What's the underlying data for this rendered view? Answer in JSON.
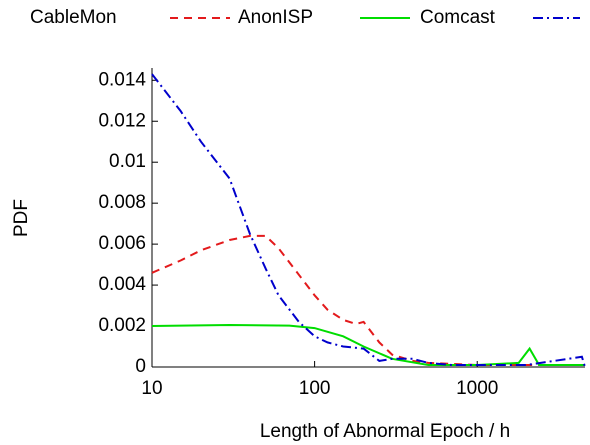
{
  "chart_data": {
    "type": "line",
    "xlabel": "Length of Abnormal Epoch / h",
    "ylabel": "PDF",
    "xscale": "log",
    "xlim": [
      10,
      4600
    ],
    "ylim": [
      0,
      0.0146
    ],
    "xticks": [
      10,
      100,
      1000
    ],
    "yticks": [
      0,
      0.002,
      0.004,
      0.006,
      0.008,
      0.01,
      0.012,
      0.014
    ],
    "legend": "top",
    "series": [
      {
        "name": "CableMon",
        "color": "#e31a1c",
        "style": "dashed",
        "x": [
          10,
          15,
          20,
          30,
          40,
          50,
          60,
          80,
          100,
          120,
          150,
          180,
          200,
          250,
          300,
          400,
          500,
          1000,
          2000,
          4600
        ],
        "values": [
          0.0046,
          0.0052,
          0.0057,
          0.0062,
          0.0064,
          0.0064,
          0.0058,
          0.0045,
          0.0035,
          0.0028,
          0.0023,
          0.0021,
          0.0022,
          0.0012,
          0.0006,
          0.0003,
          0.0002,
          0.0001,
          0.0001,
          0.0001
        ]
      },
      {
        "name": "AnonISP",
        "color": "#00dd00",
        "style": "solid",
        "x": [
          10,
          30,
          70,
          100,
          150,
          200,
          300,
          500,
          1000,
          1800,
          2100,
          2400,
          4600
        ],
        "values": [
          0.002,
          0.00205,
          0.00202,
          0.0019,
          0.0015,
          0.001,
          0.0004,
          0.0001,
          0.0001,
          0.0002,
          0.0009,
          0.0001,
          0.0001
        ]
      },
      {
        "name": "Comcast",
        "color": "#0000cc",
        "style": "dashdot",
        "x": [
          10,
          15,
          20,
          30,
          40,
          50,
          60,
          80,
          100,
          120,
          150,
          200,
          250,
          300,
          400,
          500,
          700,
          1000,
          2000,
          4400,
          4600
        ],
        "values": [
          0.0143,
          0.0125,
          0.011,
          0.0092,
          0.0065,
          0.0048,
          0.0035,
          0.0022,
          0.0015,
          0.0012,
          0.001,
          0.0009,
          0.0003,
          0.0004,
          0.0004,
          0.0002,
          0.0001,
          0.0001,
          0.0001,
          0.0005,
          0
        ]
      }
    ]
  }
}
